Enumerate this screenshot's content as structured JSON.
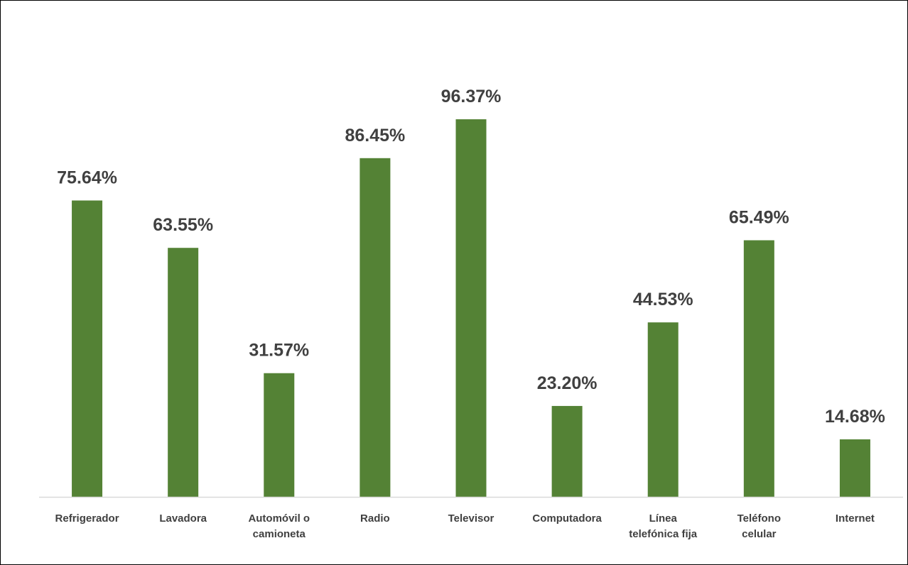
{
  "chart_data": {
    "type": "bar",
    "categories": [
      [
        "Refrigerador"
      ],
      [
        "Lavadora"
      ],
      [
        "Automóvil o",
        "camioneta"
      ],
      [
        "Radio"
      ],
      [
        "Televisor"
      ],
      [
        "Computadora"
      ],
      [
        "Línea",
        "telefónica fija"
      ],
      [
        "Teléfono",
        "celular"
      ],
      [
        "Internet"
      ]
    ],
    "values": [
      75.64,
      63.55,
      31.57,
      86.45,
      96.37,
      23.2,
      44.53,
      65.49,
      14.68
    ],
    "data_labels": [
      "75.64%",
      "63.55%",
      "31.57%",
      "86.45%",
      "96.37%",
      "23.20%",
      "44.53%",
      "65.49%",
      "14.68%"
    ],
    "title": "",
    "xlabel": "",
    "ylabel": "",
    "ylim": [
      0,
      100
    ],
    "grid": false,
    "legend": "none",
    "colors": {
      "bar": "#548235",
      "label_text": "#404040",
      "axis_line": "#d9d9d9",
      "border": "#000000"
    }
  }
}
